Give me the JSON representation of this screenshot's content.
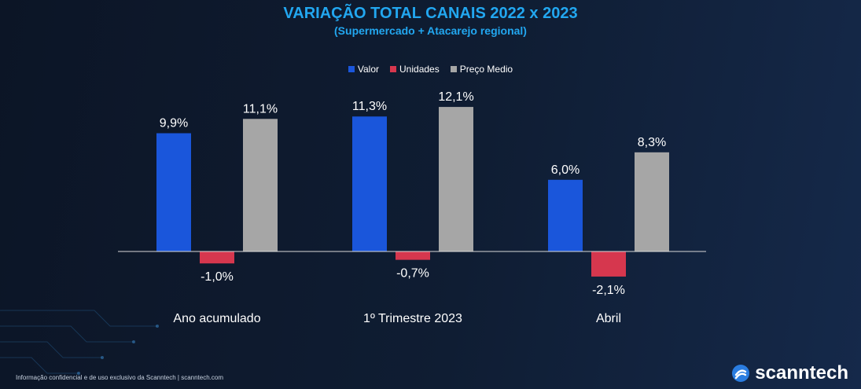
{
  "chart_data": {
    "type": "bar",
    "title": "VARIAÇÃO TOTAL CANAIS 2022 x 2023",
    "subtitle": "(Supermercado + Atacarejo regional)",
    "categories": [
      "Ano acumulado",
      "1º Trimestre 2023",
      "Abril"
    ],
    "series": [
      {
        "name": "Valor",
        "color": "#1a56db",
        "values": [
          9.9,
          11.3,
          6.0
        ],
        "labels": [
          "9,9%",
          "11,3%",
          "6,0%"
        ]
      },
      {
        "name": "Unidades",
        "color": "#d6374e",
        "values": [
          -1.0,
          -0.7,
          -2.1
        ],
        "labels": [
          "-1,0%",
          "-0,7%",
          "-2,1%"
        ]
      },
      {
        "name": "Preço Medio",
        "color": "#a6a6a6",
        "values": [
          11.1,
          12.1,
          8.3
        ],
        "labels": [
          "11,1%",
          "12,1%",
          "8,3%"
        ]
      }
    ],
    "legend_position": "top-center",
    "grid": false
  },
  "footer": "Informação confidencial e de uso exclusivo da Scanntech | scanntech.com",
  "brand": {
    "name": "scanntech",
    "icon": "scanntech-logo-icon"
  }
}
